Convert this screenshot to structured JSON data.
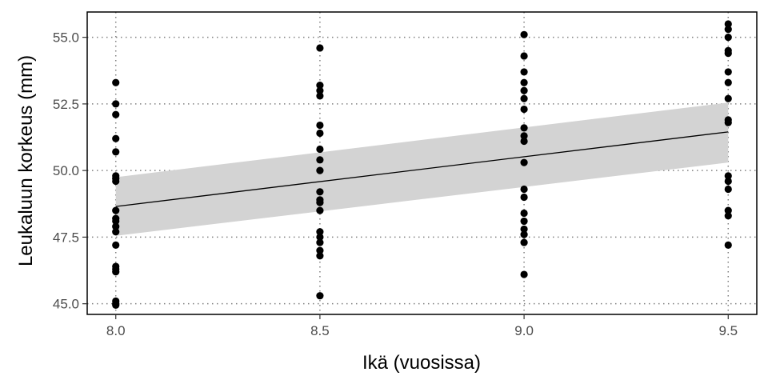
{
  "colors": {
    "background": "#ffffff",
    "panel_border": "#000000",
    "grid": "#808080",
    "points": "#000000",
    "fit_line": "#000000",
    "confidence_band": "#d3d3d3"
  },
  "chart_data": {
    "type": "scatter",
    "xlabel": "Ikä (vuosissa)",
    "ylabel": "Leukaluun korkeus (mm)",
    "xlim": [
      7.93,
      9.57
    ],
    "ylim": [
      44.6,
      55.95
    ],
    "x_ticks": [
      8.0,
      8.5,
      9.0,
      9.5
    ],
    "x_tick_labels": [
      "8.0",
      "8.5",
      "9.0",
      "9.5"
    ],
    "y_ticks": [
      45.0,
      47.5,
      50.0,
      52.5,
      55.0
    ],
    "y_tick_labels": [
      "45.0",
      "47.5",
      "50.0",
      "52.5",
      "55.0"
    ],
    "grid": "dotted",
    "series": [
      {
        "points": [
          [
            8.0,
            53.3
          ],
          [
            8.0,
            52.5
          ],
          [
            8.0,
            52.1
          ],
          [
            8.0,
            51.2
          ],
          [
            8.0,
            50.7
          ],
          [
            8.0,
            49.8
          ],
          [
            8.0,
            49.7
          ],
          [
            8.0,
            49.6
          ],
          [
            8.0,
            48.5
          ],
          [
            8.0,
            48.2
          ],
          [
            8.0,
            48.1
          ],
          [
            8.0,
            47.9
          ],
          [
            8.0,
            47.7
          ],
          [
            8.0,
            47.2
          ],
          [
            8.0,
            46.4
          ],
          [
            8.0,
            46.3
          ],
          [
            8.0,
            46.2
          ],
          [
            8.0,
            45.1
          ],
          [
            8.0,
            45.0
          ],
          [
            8.0,
            44.95
          ],
          [
            8.5,
            54.6
          ],
          [
            8.5,
            53.2
          ],
          [
            8.5,
            53.0
          ],
          [
            8.5,
            52.8
          ],
          [
            8.5,
            51.7
          ],
          [
            8.5,
            51.4
          ],
          [
            8.5,
            50.8
          ],
          [
            8.5,
            50.4
          ],
          [
            8.5,
            50.0
          ],
          [
            8.5,
            49.2
          ],
          [
            8.5,
            48.9
          ],
          [
            8.5,
            48.8
          ],
          [
            8.5,
            48.5
          ],
          [
            8.5,
            47.7
          ],
          [
            8.5,
            47.5
          ],
          [
            8.5,
            47.3
          ],
          [
            8.5,
            47.0
          ],
          [
            8.5,
            46.8
          ],
          [
            8.5,
            45.3
          ],
          [
            9.0,
            55.1
          ],
          [
            9.0,
            54.3
          ],
          [
            9.0,
            53.7
          ],
          [
            9.0,
            53.3
          ],
          [
            9.0,
            53.0
          ],
          [
            9.0,
            52.7
          ],
          [
            9.0,
            52.3
          ],
          [
            9.0,
            51.6
          ],
          [
            9.0,
            51.3
          ],
          [
            9.0,
            51.1
          ],
          [
            9.0,
            50.3
          ],
          [
            9.0,
            49.3
          ],
          [
            9.0,
            49.0
          ],
          [
            9.0,
            48.4
          ],
          [
            9.0,
            48.1
          ],
          [
            9.0,
            47.8
          ],
          [
            9.0,
            47.6
          ],
          [
            9.0,
            47.3
          ],
          [
            9.0,
            46.1
          ],
          [
            9.5,
            55.5
          ],
          [
            9.5,
            55.3
          ],
          [
            9.5,
            55.0
          ],
          [
            9.5,
            54.5
          ],
          [
            9.5,
            54.4
          ],
          [
            9.5,
            53.7
          ],
          [
            9.5,
            53.3
          ],
          [
            9.5,
            52.7
          ],
          [
            9.5,
            51.9
          ],
          [
            9.5,
            51.8
          ],
          [
            9.5,
            49.8
          ],
          [
            9.5,
            49.6
          ],
          [
            9.5,
            49.3
          ],
          [
            9.5,
            48.5
          ],
          [
            9.5,
            48.3
          ],
          [
            9.5,
            47.2
          ]
        ]
      }
    ],
    "fit": {
      "type": "linear",
      "x": [
        8.0,
        9.5
      ],
      "y": [
        48.65,
        51.45
      ],
      "ci_upper": [
        49.75,
        52.55
      ],
      "ci_lower": [
        47.55,
        50.3
      ]
    }
  }
}
